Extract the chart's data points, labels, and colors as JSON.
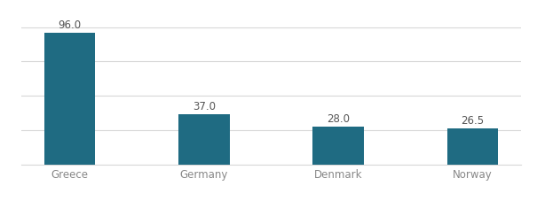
{
  "categories": [
    "Greece",
    "Germany",
    "Denmark",
    "Norway"
  ],
  "values": [
    96.0,
    37.0,
    28.0,
    26.5
  ],
  "bar_color": "#1f6b82",
  "label_fontsize": 8.5,
  "tick_fontsize": 8.5,
  "ylim": [
    0,
    108
  ],
  "yticks": [
    0,
    25,
    50,
    75,
    100
  ],
  "grid_color": "#d8d8d8",
  "background_color": "#ffffff",
  "bar_width": 0.38,
  "label_color": "#555555",
  "tick_color": "#888888"
}
